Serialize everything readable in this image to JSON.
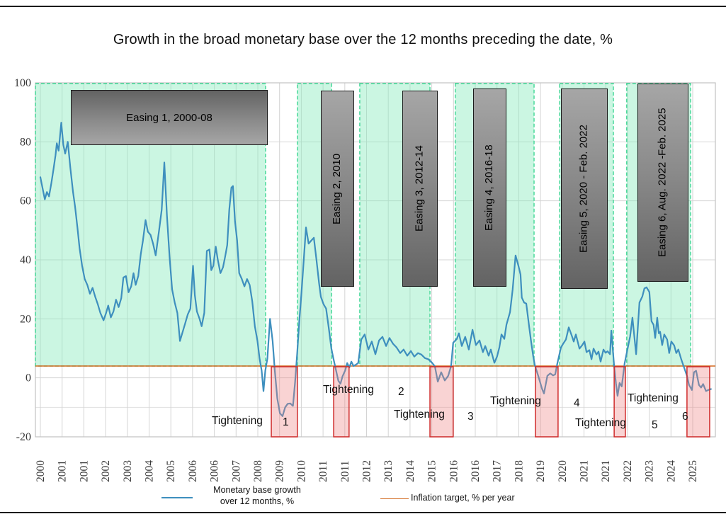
{
  "title": "Growth in the broad monetary base over the 12 months preceding the date, %",
  "legend": {
    "series1_line1": "Monetary base growth",
    "series1_line2": "over 12 months, %",
    "series2_label": "Inflation target, % per year"
  },
  "chart_data": {
    "type": "line",
    "title": "Growth in the broad monetary base over the 12 months preceding the date, %",
    "x_axis": {
      "range_years": [
        2000,
        2025.7
      ],
      "label_rotation_deg": 90,
      "tick_labels": [
        "2000",
        "2001",
        "2001",
        "2002",
        "2003",
        "2004",
        "2005",
        "2006",
        "2006",
        "2007",
        "2008",
        "2009",
        "2010",
        "2011",
        "2011",
        "2012",
        "2013",
        "2014",
        "2015",
        "2016",
        "2016",
        "2017",
        "2018",
        "2019",
        "2020",
        "2021",
        "2021",
        "2022",
        "2023",
        "2024",
        "2025"
      ]
    },
    "y_axis": {
      "ticks": [
        100,
        80,
        60,
        40,
        20,
        0,
        -20
      ],
      "range": [
        -20,
        100
      ],
      "minor_gridline_at": -10
    },
    "series": [
      {
        "name": "Monetary base growth over 12 months, %",
        "color": "#3e8fbe",
        "points": [
          [
            2000.0,
            68
          ],
          [
            2000.08,
            64.5
          ],
          [
            2000.17,
            60.5
          ],
          [
            2000.25,
            63
          ],
          [
            2000.33,
            61.5
          ],
          [
            2000.42,
            66
          ],
          [
            2000.5,
            70.5
          ],
          [
            2000.58,
            75.5
          ],
          [
            2000.63,
            79.5
          ],
          [
            2000.7,
            77
          ],
          [
            2000.8,
            86.5
          ],
          [
            2000.88,
            79
          ],
          [
            2000.95,
            76
          ],
          [
            2001.05,
            80
          ],
          [
            2001.15,
            71
          ],
          [
            2001.25,
            63
          ],
          [
            2001.33,
            58
          ],
          [
            2001.42,
            51
          ],
          [
            2001.5,
            44
          ],
          [
            2001.6,
            38
          ],
          [
            2001.7,
            33.5
          ],
          [
            2001.8,
            31.5
          ],
          [
            2001.9,
            28.5
          ],
          [
            2002.0,
            30.5
          ],
          [
            2002.1,
            27.5
          ],
          [
            2002.2,
            25
          ],
          [
            2002.3,
            22
          ],
          [
            2002.42,
            19.5
          ],
          [
            2002.52,
            22
          ],
          [
            2002.6,
            24.5
          ],
          [
            2002.7,
            20.5
          ],
          [
            2002.8,
            22.5
          ],
          [
            2002.9,
            26.5
          ],
          [
            2003.0,
            24
          ],
          [
            2003.1,
            27
          ],
          [
            2003.18,
            34
          ],
          [
            2003.28,
            34.5
          ],
          [
            2003.38,
            29
          ],
          [
            2003.48,
            31
          ],
          [
            2003.57,
            35.5
          ],
          [
            2003.65,
            31.5
          ],
          [
            2003.75,
            34.5
          ],
          [
            2003.85,
            42
          ],
          [
            2003.93,
            46.5
          ],
          [
            2004.03,
            53.5
          ],
          [
            2004.12,
            49.5
          ],
          [
            2004.22,
            48.5
          ],
          [
            2004.32,
            45.5
          ],
          [
            2004.42,
            41.5
          ],
          [
            2004.55,
            50
          ],
          [
            2004.65,
            57
          ],
          [
            2004.75,
            73
          ],
          [
            2004.85,
            55
          ],
          [
            2004.95,
            41
          ],
          [
            2005.05,
            30
          ],
          [
            2005.15,
            25.5
          ],
          [
            2005.25,
            22
          ],
          [
            2005.35,
            12.5
          ],
          [
            2005.45,
            15.5
          ],
          [
            2005.55,
            18.5
          ],
          [
            2005.65,
            21.5
          ],
          [
            2005.75,
            23.5
          ],
          [
            2005.85,
            38
          ],
          [
            2005.92,
            28
          ],
          [
            2006.0,
            22.5
          ],
          [
            2006.1,
            20
          ],
          [
            2006.18,
            17.5
          ],
          [
            2006.28,
            22
          ],
          [
            2006.38,
            43
          ],
          [
            2006.48,
            43.5
          ],
          [
            2006.55,
            36.5
          ],
          [
            2006.63,
            38
          ],
          [
            2006.72,
            44.5
          ],
          [
            2006.8,
            40
          ],
          [
            2006.9,
            35.5
          ],
          [
            2007.0,
            37.5
          ],
          [
            2007.08,
            41
          ],
          [
            2007.16,
            45
          ],
          [
            2007.24,
            57
          ],
          [
            2007.32,
            64.5
          ],
          [
            2007.38,
            65
          ],
          [
            2007.46,
            53
          ],
          [
            2007.54,
            46.5
          ],
          [
            2007.62,
            35.5
          ],
          [
            2007.72,
            33.5
          ],
          [
            2007.82,
            31
          ],
          [
            2007.92,
            33.5
          ],
          [
            2008.02,
            31.5
          ],
          [
            2008.12,
            26
          ],
          [
            2008.22,
            17.5
          ],
          [
            2008.32,
            12.5
          ],
          [
            2008.4,
            6.5
          ],
          [
            2008.48,
            2.5
          ],
          [
            2008.55,
            -4.5
          ],
          [
            2008.62,
            2.5
          ],
          [
            2008.7,
            6.5
          ],
          [
            2008.8,
            20
          ],
          [
            2008.9,
            12.5
          ],
          [
            2008.98,
            3
          ],
          [
            2009.08,
            -7
          ],
          [
            2009.18,
            -12
          ],
          [
            2009.28,
            -13
          ],
          [
            2009.38,
            -10
          ],
          [
            2009.48,
            -8.8
          ],
          [
            2009.58,
            -8.7
          ],
          [
            2009.68,
            -9.5
          ],
          [
            2009.76,
            -1.5
          ],
          [
            2009.84,
            8
          ],
          [
            2009.92,
            19
          ],
          [
            2010.0,
            28
          ],
          [
            2010.08,
            38
          ],
          [
            2010.18,
            51
          ],
          [
            2010.28,
            45.5
          ],
          [
            2010.38,
            46.5
          ],
          [
            2010.48,
            47.5
          ],
          [
            2010.58,
            40
          ],
          [
            2010.68,
            32
          ],
          [
            2010.75,
            27.5
          ],
          [
            2010.85,
            25
          ],
          [
            2010.95,
            23.5
          ],
          [
            2011.05,
            17
          ],
          [
            2011.15,
            10
          ],
          [
            2011.22,
            7
          ],
          [
            2011.32,
            3
          ],
          [
            2011.42,
            -1
          ],
          [
            2011.5,
            -2
          ],
          [
            2011.58,
            0.5
          ],
          [
            2011.68,
            2.5
          ],
          [
            2011.76,
            5
          ],
          [
            2011.84,
            3.5
          ],
          [
            2011.92,
            5.5
          ],
          [
            2012.0,
            4
          ],
          [
            2012.1,
            4.5
          ],
          [
            2012.18,
            5
          ],
          [
            2012.3,
            13
          ],
          [
            2012.43,
            14.7
          ],
          [
            2012.57,
            9.6
          ],
          [
            2012.7,
            12.3
          ],
          [
            2012.84,
            8
          ],
          [
            2012.98,
            12.7
          ],
          [
            2013.11,
            13.9
          ],
          [
            2013.25,
            10.8
          ],
          [
            2013.38,
            13.5
          ],
          [
            2013.52,
            11.5
          ],
          [
            2013.65,
            10.3
          ],
          [
            2013.79,
            8.4
          ],
          [
            2013.92,
            9.6
          ],
          [
            2014.06,
            7.5
          ],
          [
            2014.2,
            9.1
          ],
          [
            2014.33,
            7.2
          ],
          [
            2014.47,
            8.4
          ],
          [
            2014.6,
            7.9
          ],
          [
            2014.74,
            6.7
          ],
          [
            2014.87,
            6.3
          ],
          [
            2015.01,
            5.1
          ],
          [
            2015.12,
            3.9
          ],
          [
            2015.23,
            -1.3
          ],
          [
            2015.36,
            1.9
          ],
          [
            2015.5,
            -0.9
          ],
          [
            2015.63,
            0.7
          ],
          [
            2015.74,
            4
          ],
          [
            2015.82,
            11.9
          ],
          [
            2015.96,
            13.2
          ],
          [
            2016.04,
            15.1
          ],
          [
            2016.15,
            10.8
          ],
          [
            2016.28,
            13.9
          ],
          [
            2016.42,
            9.6
          ],
          [
            2016.56,
            16.3
          ],
          [
            2016.69,
            11.1
          ],
          [
            2016.83,
            12.7
          ],
          [
            2016.96,
            8.7
          ],
          [
            2017.05,
            10.8
          ],
          [
            2017.18,
            7.5
          ],
          [
            2017.26,
            9.6
          ],
          [
            2017.4,
            5.1
          ],
          [
            2017.5,
            7.2
          ],
          [
            2017.59,
            10.3
          ],
          [
            2017.67,
            14.7
          ],
          [
            2017.78,
            13.2
          ],
          [
            2017.86,
            18
          ],
          [
            2018.0,
            22.3
          ],
          [
            2018.1,
            30
          ],
          [
            2018.21,
            41.5
          ],
          [
            2018.32,
            38
          ],
          [
            2018.4,
            35
          ],
          [
            2018.45,
            27.2
          ],
          [
            2018.54,
            25.5
          ],
          [
            2018.62,
            25.2
          ],
          [
            2018.73,
            17.5
          ],
          [
            2018.81,
            12
          ],
          [
            2018.89,
            7.2
          ],
          [
            2018.95,
            4.3
          ],
          [
            2019.08,
            0.7
          ],
          [
            2019.22,
            -3.6
          ],
          [
            2019.3,
            -5.3
          ],
          [
            2019.43,
            0.7
          ],
          [
            2019.54,
            1.5
          ],
          [
            2019.65,
            0.8
          ],
          [
            2019.73,
            1.2
          ],
          [
            2019.81,
            4.8
          ],
          [
            2019.95,
            10.3
          ],
          [
            2020.03,
            11.5
          ],
          [
            2020.14,
            13
          ],
          [
            2020.25,
            17.1
          ],
          [
            2020.36,
            14.4
          ],
          [
            2020.44,
            12.3
          ],
          [
            2020.52,
            14.7
          ],
          [
            2020.66,
            9.9
          ],
          [
            2020.76,
            11
          ],
          [
            2020.85,
            12.3
          ],
          [
            2020.93,
            8.7
          ],
          [
            2021.04,
            9.4
          ],
          [
            2021.12,
            6.3
          ],
          [
            2021.2,
            9.9
          ],
          [
            2021.31,
            7.9
          ],
          [
            2021.39,
            8.9
          ],
          [
            2021.47,
            5.5
          ],
          [
            2021.58,
            9.6
          ],
          [
            2021.66,
            8.5
          ],
          [
            2021.74,
            9
          ],
          [
            2021.83,
            8
          ],
          [
            2021.88,
            16
          ],
          [
            2021.99,
            3.9
          ],
          [
            2022.06,
            -2
          ],
          [
            2022.12,
            -6.1
          ],
          [
            2022.2,
            -1.7
          ],
          [
            2022.28,
            -2.9
          ],
          [
            2022.39,
            4.8
          ],
          [
            2022.47,
            8.4
          ],
          [
            2022.6,
            14
          ],
          [
            2022.69,
            20.4
          ],
          [
            2022.83,
            8
          ],
          [
            2022.96,
            25.5
          ],
          [
            2023.07,
            27.6
          ],
          [
            2023.15,
            30.3
          ],
          [
            2023.23,
            30.7
          ],
          [
            2023.34,
            29.1
          ],
          [
            2023.42,
            19.2
          ],
          [
            2023.5,
            18
          ],
          [
            2023.56,
            13.5
          ],
          [
            2023.64,
            20.4
          ],
          [
            2023.7,
            15.1
          ],
          [
            2023.75,
            15.6
          ],
          [
            2023.83,
            11.1
          ],
          [
            2023.91,
            14.7
          ],
          [
            2024.02,
            13
          ],
          [
            2024.1,
            8.4
          ],
          [
            2024.18,
            12.3
          ],
          [
            2024.29,
            11
          ],
          [
            2024.37,
            8.4
          ],
          [
            2024.45,
            9.6
          ],
          [
            2024.56,
            6.3
          ],
          [
            2024.64,
            4.3
          ],
          [
            2024.78,
            0.7
          ],
          [
            2024.86,
            -2.4
          ],
          [
            2024.97,
            -4.1
          ],
          [
            2025.05,
            1.9
          ],
          [
            2025.13,
            2.4
          ],
          [
            2025.24,
            -2.4
          ],
          [
            2025.32,
            -3.3
          ],
          [
            2025.4,
            -2.1
          ],
          [
            2025.51,
            -4.5
          ],
          [
            2025.6,
            -4.1
          ],
          [
            2025.7,
            -3.8
          ]
        ]
      },
      {
        "name": "Inflation target, % per year",
        "color": "#d2691e",
        "constant_value": 4
      }
    ],
    "easing_regions": [
      {
        "label": "Easing 1, 2000-08",
        "start_year": 1999.81,
        "end_year": 2008.63
      },
      {
        "label": "Easing 2, 2010",
        "start_year": 2009.85,
        "end_year": 2011.16
      },
      {
        "label": "Easing 3, 2012-14",
        "start_year": 2012.24,
        "end_year": 2014.93
      },
      {
        "label": "Easing 4, 2016-18",
        "start_year": 2015.9,
        "end_year": 2018.92
      },
      {
        "label": "Easing 5, 2020 - Feb. 2022",
        "start_year": 2019.9,
        "end_year": 2021.96
      },
      {
        "label": "Easing 6, Aug. 2022 -\nFeb. 2025",
        "start_year": 2022.47,
        "end_year": 2024.92
      }
    ],
    "tightening_regions": [
      {
        "word": "Tightening",
        "num": "1",
        "start_year": 2008.85,
        "end_year": 2009.85
      },
      {
        "word": "Tightening",
        "num": "2",
        "start_year": 2011.24,
        "end_year": 2011.83
      },
      {
        "word": "Tightening",
        "num": "3",
        "start_year": 2014.93,
        "end_year": 2015.82
      },
      {
        "word": "Tightening",
        "num": "4",
        "start_year": 2018.97,
        "end_year": 2019.84
      },
      {
        "word": "Tightening",
        "num": "5",
        "start_year": 2021.99,
        "end_year": 2022.42
      },
      {
        "word": "Tightening",
        "num": "6",
        "start_year": 2024.78,
        "end_year": 2025.65
      }
    ],
    "colors": {
      "easing_fill": "rgba(140,235,190,0.45)",
      "easing_border": "#3ed694",
      "tightening_fill": "rgba(238,130,130,0.35)",
      "tightening_border": "#cf2b2b",
      "grid": "#d4d4d4",
      "frame": "#c2c2c2"
    },
    "legend_position": "bottom"
  }
}
